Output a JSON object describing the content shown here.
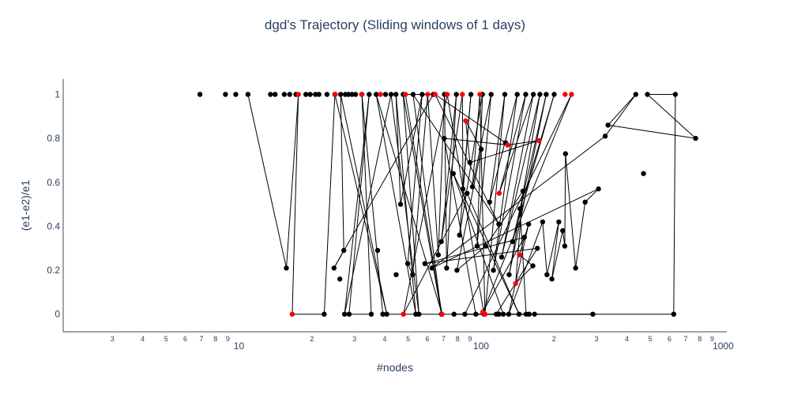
{
  "chart_data": {
    "type": "scatter",
    "title": "dgd's Trajectory (Sliding windows of 1 days)",
    "xlabel": "#nodes",
    "ylabel": "(e1-e2)/e1",
    "xscale": "log",
    "xlim": [
      1.88,
      1035
    ],
    "ylim": [
      -0.08,
      1.07
    ],
    "x_major_ticks": [
      {
        "value": 10,
        "label": "10"
      },
      {
        "value": 100,
        "label": "100"
      },
      {
        "value": 1000,
        "label": "1000"
      }
    ],
    "x_minor_ticks": [
      {
        "value": 3,
        "label": "3"
      },
      {
        "value": 4,
        "label": "4"
      },
      {
        "value": 5,
        "label": "5"
      },
      {
        "value": 6,
        "label": "6"
      },
      {
        "value": 7,
        "label": "7"
      },
      {
        "value": 8,
        "label": "8"
      },
      {
        "value": 9,
        "label": "9"
      },
      {
        "value": 20,
        "label": "2"
      },
      {
        "value": 30,
        "label": "3"
      },
      {
        "value": 40,
        "label": "4"
      },
      {
        "value": 50,
        "label": "5"
      },
      {
        "value": 60,
        "label": "6"
      },
      {
        "value": 70,
        "label": "7"
      },
      {
        "value": 80,
        "label": "8"
      },
      {
        "value": 90,
        "label": "9"
      },
      {
        "value": 200,
        "label": "2"
      },
      {
        "value": 300,
        "label": "3"
      },
      {
        "value": 400,
        "label": "4"
      },
      {
        "value": 500,
        "label": "5"
      },
      {
        "value": 600,
        "label": "6"
      },
      {
        "value": 700,
        "label": "7"
      },
      {
        "value": 800,
        "label": "8"
      },
      {
        "value": 900,
        "label": "9"
      }
    ],
    "y_ticks": [
      {
        "value": 0,
        "label": "0"
      },
      {
        "value": 0.2,
        "label": "0.2"
      },
      {
        "value": 0.4,
        "label": "0.4"
      },
      {
        "value": 0.6,
        "label": "0.6"
      },
      {
        "value": 0.8,
        "label": "0.8"
      },
      {
        "value": 1,
        "label": "1"
      }
    ],
    "colors": {
      "normal": "#000000",
      "highlight": "#ff0000",
      "text": "#2a3f5f",
      "axis": "#444444"
    },
    "series": [
      {
        "name": "trajectory",
        "marker_color": "#000000",
        "points": [
          [
            10.9,
            1.0
          ],
          [
            13.5,
            1.0
          ],
          [
            14.1,
            1.0
          ],
          [
            15.4,
            1.0
          ],
          [
            16.2,
            1.0
          ],
          [
            17.2,
            1.0
          ],
          [
            18.9,
            1.0
          ],
          [
            19.7,
            1.0
          ],
          [
            20.7,
            1.0
          ],
          [
            21.4,
            1.0
          ],
          [
            23.1,
            1.0
          ],
          [
            24.9,
            1.0
          ],
          [
            26.3,
            1.0
          ],
          [
            27.5,
            1.0
          ],
          [
            28.3,
            1.0
          ],
          [
            29.3,
            1.0
          ],
          [
            30.3,
            1.0
          ],
          [
            32.2,
            1.0
          ],
          [
            34.5,
            1.0
          ],
          [
            36.9,
            1.0
          ],
          [
            40.3,
            1.0
          ],
          [
            42.5,
            1.0
          ],
          [
            44.5,
            1.0
          ],
          [
            47.7,
            1.0
          ],
          [
            52.4,
            1.0
          ],
          [
            57.1,
            1.0
          ],
          [
            63.5,
            1.0
          ],
          [
            70.6,
            1.0
          ],
          [
            79.1,
            1.0
          ],
          [
            90.8,
            1.0
          ],
          [
            101.3,
            1.0
          ],
          [
            110.1,
            1.0
          ],
          [
            125.3,
            1.0
          ],
          [
            141.0,
            1.0
          ],
          [
            153.0,
            1.0
          ],
          [
            164.4,
            1.0
          ],
          [
            175.0,
            1.0
          ],
          [
            185.8,
            1.0
          ],
          [
            200.5,
            1.0
          ],
          [
            435.6,
            1.0
          ],
          [
            486.3,
            1.0
          ],
          [
            634.7,
            1.0
          ],
          [
            22.5,
            0.0
          ],
          [
            27.3,
            0.0
          ],
          [
            28.5,
            0.0
          ],
          [
            35.2,
            0.0
          ],
          [
            39.3,
            0.0
          ],
          [
            40.8,
            0.0
          ],
          [
            53.8,
            0.0
          ],
          [
            55.4,
            0.0
          ],
          [
            68.6,
            0.0
          ],
          [
            77.3,
            0.0
          ],
          [
            85.7,
            0.0
          ],
          [
            95.1,
            0.0
          ],
          [
            102.9,
            0.0
          ],
          [
            115.6,
            0.0
          ],
          [
            118.6,
            0.0
          ],
          [
            123.6,
            0.0
          ],
          [
            130.0,
            0.0
          ],
          [
            143.5,
            0.0
          ],
          [
            153.5,
            0.0
          ],
          [
            158.0,
            0.0
          ],
          [
            166.3,
            0.0
          ],
          [
            289.5,
            0.0
          ],
          [
            624.6,
            0.0
          ],
          [
            15.7,
            0.21
          ],
          [
            24.7,
            0.21
          ],
          [
            26.1,
            0.16
          ],
          [
            27.1,
            0.29
          ],
          [
            37.4,
            0.29
          ],
          [
            44.6,
            0.18
          ],
          [
            46.5,
            0.5
          ],
          [
            49.8,
            0.23
          ],
          [
            52.2,
            0.18
          ],
          [
            58.6,
            0.23
          ],
          [
            62.7,
            0.21
          ],
          [
            66.6,
            0.27
          ],
          [
            68.5,
            0.33
          ],
          [
            70.4,
            0.8
          ],
          [
            72.1,
            0.21
          ],
          [
            76.8,
            0.64
          ],
          [
            79.5,
            0.2
          ],
          [
            81.5,
            0.36
          ],
          [
            84.2,
            0.57
          ],
          [
            87.5,
            0.55
          ],
          [
            89.9,
            0.69
          ],
          [
            92.1,
            0.58
          ],
          [
            96.3,
            0.31
          ],
          [
            100.1,
            0.75
          ],
          [
            104.5,
            0.31
          ],
          [
            108.5,
            0.51
          ],
          [
            112.5,
            0.2
          ],
          [
            118.4,
            0.41
          ],
          [
            121.6,
            0.26
          ],
          [
            126.2,
            0.78
          ],
          [
            130.6,
            0.18
          ],
          [
            134.8,
            0.33
          ],
          [
            144.9,
            0.48
          ],
          [
            148.9,
            0.56
          ],
          [
            151.0,
            0.35
          ],
          [
            157.1,
            0.41
          ],
          [
            163.6,
            0.22
          ],
          [
            170.8,
            0.3
          ],
          [
            179.6,
            0.42
          ],
          [
            187.2,
            0.18
          ],
          [
            196.2,
            0.16
          ],
          [
            209.6,
            0.42
          ],
          [
            217.4,
            0.38
          ],
          [
            221.7,
            0.31
          ],
          [
            223.2,
            0.73
          ],
          [
            245.8,
            0.21
          ],
          [
            269.1,
            0.51
          ],
          [
            305.5,
            0.57
          ],
          [
            325.8,
            0.81
          ],
          [
            334.4,
            0.86
          ],
          [
            469.0,
            0.64
          ],
          [
            769.7,
            0.8
          ],
          [
            6.9,
            1.0
          ],
          [
            8.8,
            1.0
          ],
          [
            9.7,
            1.0
          ]
        ]
      },
      {
        "name": "highlighted",
        "marker_color": "#ff0000",
        "points": [
          [
            16.6,
            0.0
          ],
          [
            17.6,
            1.0
          ],
          [
            25.0,
            1.0
          ],
          [
            32.1,
            1.0
          ],
          [
            38.4,
            1.0
          ],
          [
            47.8,
            0.0
          ],
          [
            48.7,
            1.0
          ],
          [
            60.2,
            1.0
          ],
          [
            64.6,
            1.0
          ],
          [
            69.0,
            0.0
          ],
          [
            72.5,
            1.0
          ],
          [
            83.7,
            1.0
          ],
          [
            86.4,
            0.88
          ],
          [
            98.9,
            1.0
          ],
          [
            101.6,
            0.01
          ],
          [
            103.8,
            0.0
          ],
          [
            118.8,
            0.55
          ],
          [
            128.8,
            0.77
          ],
          [
            138.9,
            0.14
          ],
          [
            144.0,
            0.27
          ],
          [
            173.4,
            0.79
          ],
          [
            222.3,
            1.0
          ],
          [
            236.3,
            1.0
          ]
        ]
      }
    ],
    "path_order": [
      [
        10.9,
        1.0
      ],
      [
        15.7,
        0.21
      ],
      [
        17.6,
        1.0
      ],
      [
        16.6,
        0.0
      ],
      [
        22.5,
        0.0
      ],
      [
        24.9,
        1.0
      ],
      [
        40.8,
        0.0
      ],
      [
        26.3,
        1.0
      ],
      [
        27.1,
        0.29
      ],
      [
        24.7,
        0.21
      ],
      [
        63.5,
        1.0
      ],
      [
        48.7,
        1.0
      ],
      [
        69.0,
        0.0
      ],
      [
        36.9,
        1.0
      ],
      [
        53.8,
        0.0
      ],
      [
        44.5,
        1.0
      ],
      [
        46.5,
        0.5
      ],
      [
        57.1,
        1.0
      ],
      [
        49.8,
        0.23
      ],
      [
        52.2,
        0.18
      ],
      [
        60.2,
        1.0
      ],
      [
        66.6,
        0.27
      ],
      [
        70.6,
        1.0
      ],
      [
        72.1,
        0.21
      ],
      [
        79.1,
        1.0
      ],
      [
        68.5,
        0.33
      ],
      [
        83.7,
        1.0
      ],
      [
        84.2,
        0.57
      ],
      [
        90.8,
        1.0
      ],
      [
        81.5,
        0.36
      ],
      [
        101.3,
        1.0
      ],
      [
        96.3,
        0.31
      ],
      [
        110.1,
        1.0
      ],
      [
        92.1,
        0.58
      ],
      [
        98.9,
        1.0
      ],
      [
        103.8,
        0.0
      ],
      [
        125.3,
        1.0
      ],
      [
        108.5,
        0.51
      ],
      [
        141.0,
        1.0
      ],
      [
        112.5,
        0.2
      ],
      [
        153.0,
        1.0
      ],
      [
        118.8,
        0.55
      ],
      [
        164.4,
        1.0
      ],
      [
        121.6,
        0.26
      ],
      [
        175.0,
        1.0
      ],
      [
        130.6,
        0.18
      ],
      [
        185.8,
        1.0
      ],
      [
        134.8,
        0.33
      ],
      [
        200.5,
        1.0
      ],
      [
        144.9,
        0.48
      ],
      [
        153.5,
        0.0
      ],
      [
        158.0,
        0.0
      ],
      [
        166.3,
        0.0
      ],
      [
        118.6,
        0.0
      ],
      [
        95.1,
        0.0
      ],
      [
        70.4,
        0.8
      ],
      [
        128.8,
        0.77
      ],
      [
        173.4,
        0.79
      ],
      [
        89.9,
        0.69
      ],
      [
        86.4,
        0.88
      ],
      [
        100.1,
        0.75
      ],
      [
        79.5,
        0.2
      ],
      [
        104.5,
        0.31
      ],
      [
        148.9,
        0.56
      ],
      [
        138.9,
        0.14
      ],
      [
        163.6,
        0.22
      ],
      [
        144.0,
        0.27
      ],
      [
        157.1,
        0.41
      ],
      [
        130.0,
        0.0
      ],
      [
        179.6,
        0.42
      ],
      [
        187.2,
        0.18
      ],
      [
        209.6,
        0.42
      ],
      [
        196.2,
        0.16
      ],
      [
        217.4,
        0.38
      ],
      [
        221.7,
        0.31
      ],
      [
        223.2,
        0.73
      ],
      [
        245.8,
        0.21
      ],
      [
        269.1,
        0.51
      ],
      [
        305.5,
        0.57
      ],
      [
        62.7,
        0.21
      ],
      [
        325.8,
        0.81
      ],
      [
        435.6,
        1.0
      ],
      [
        334.4,
        0.86
      ],
      [
        769.7,
        0.8
      ],
      [
        486.3,
        1.0
      ],
      [
        634.7,
        1.0
      ],
      [
        624.6,
        0.0
      ],
      [
        77.3,
        0.0
      ],
      [
        289.5,
        0.0
      ],
      [
        85.7,
        0.0
      ],
      [
        236.3,
        1.0
      ],
      [
        101.6,
        0.01
      ],
      [
        151.0,
        0.35
      ],
      [
        58.6,
        0.23
      ],
      [
        170.8,
        0.3
      ],
      [
        115.6,
        0.0
      ],
      [
        123.6,
        0.0
      ],
      [
        76.8,
        0.64
      ],
      [
        143.5,
        0.0
      ],
      [
        87.5,
        0.55
      ],
      [
        47.8,
        0.0
      ],
      [
        72.5,
        1.0
      ],
      [
        102.9,
        0.0
      ],
      [
        39.3,
        0.0
      ],
      [
        32.2,
        1.0
      ],
      [
        35.2,
        0.0
      ],
      [
        28.5,
        0.0
      ],
      [
        34.5,
        1.0
      ],
      [
        27.3,
        0.0
      ],
      [
        42.5,
        1.0
      ],
      [
        55.4,
        0.0
      ],
      [
        47.7,
        1.0
      ],
      [
        68.6,
        0.0
      ],
      [
        52.4,
        1.0
      ],
      [
        118.4,
        0.41
      ],
      [
        64.6,
        1.0
      ],
      [
        126.2,
        0.78
      ]
    ]
  }
}
